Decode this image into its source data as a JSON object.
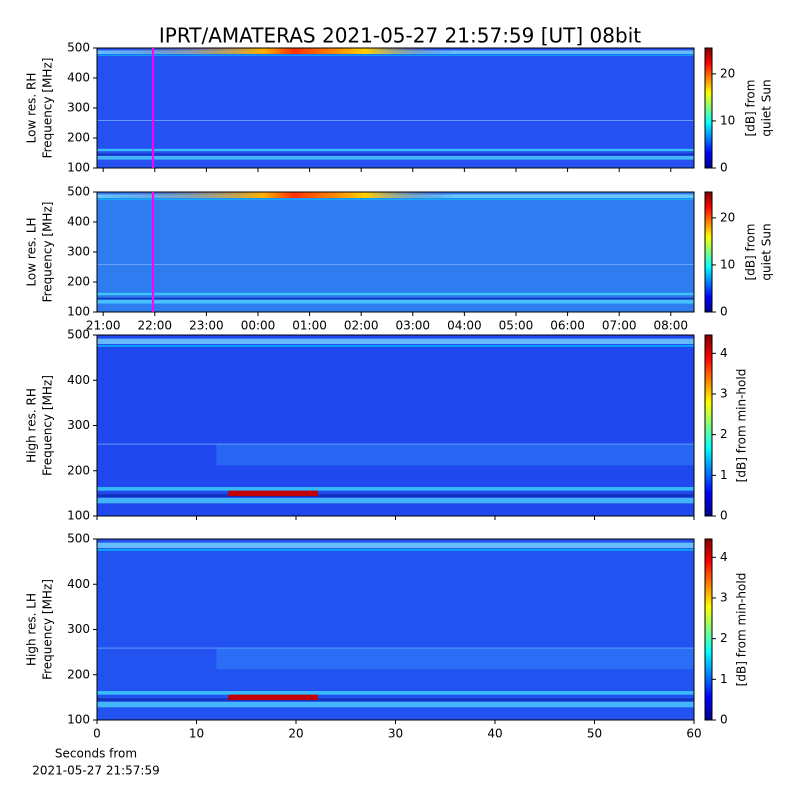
{
  "chart_data": [
    {
      "type": "heatmap",
      "title": "IPRT/AMATERAS 2021-05-27 21:57:59 [UT]   08bit",
      "ylabel": [
        "Low res. RH",
        "Frequency [MHz]"
      ],
      "ylim": [
        100,
        500
      ],
      "yticks": [
        100,
        200,
        300,
        400,
        500
      ],
      "xlim": [
        20.88,
        32.45
      ],
      "xticks": [
        21,
        22,
        23,
        24,
        25,
        26,
        27,
        28,
        29,
        30,
        31,
        32
      ],
      "xticklabels": false,
      "marker": {
        "x": 21.966,
        "color": "#ff00ff"
      },
      "colorbar": {
        "label": [
          "[dB] from",
          "quiet Sun"
        ],
        "lim": [
          0,
          25.5
        ],
        "ticks": [
          0,
          10,
          20
        ]
      }
    },
    {
      "type": "heatmap",
      "ylabel": [
        "Low res. LH",
        "Frequency [MHz]"
      ],
      "ylim": [
        100,
        500
      ],
      "yticks": [
        100,
        200,
        300,
        400,
        500
      ],
      "xlim": [
        20.88,
        32.45
      ],
      "xticks": [
        {
          "value": 21,
          "label": "21:00"
        },
        {
          "value": 22,
          "label": "22:00"
        },
        {
          "value": 23,
          "label": "23:00"
        },
        {
          "value": 24,
          "label": "00:00"
        },
        {
          "value": 25,
          "label": "01:00"
        },
        {
          "value": 26,
          "label": "02:00"
        },
        {
          "value": 27,
          "label": "03:00"
        },
        {
          "value": 28,
          "label": "04:00"
        },
        {
          "value": 29,
          "label": "05:00"
        },
        {
          "value": 30,
          "label": "06:00"
        },
        {
          "value": 31,
          "label": "07:00"
        },
        {
          "value": 32,
          "label": "08:00"
        }
      ],
      "xticklabels": true,
      "marker": {
        "x": 21.966,
        "color": "#ff00ff"
      },
      "colorbar": {
        "label": [
          "[dB] from",
          "quiet Sun"
        ],
        "lim": [
          0,
          25.5
        ],
        "ticks": [
          0,
          10,
          20
        ]
      }
    },
    {
      "type": "heatmap",
      "ylabel": [
        "High res. RH",
        "Frequency [MHz]"
      ],
      "ylim": [
        100,
        500
      ],
      "yticks": [
        100,
        200,
        300,
        400,
        500
      ],
      "xlim": [
        0,
        60
      ],
      "xticks": [
        0,
        10,
        20,
        30,
        40,
        50,
        60
      ],
      "xticklabels": false,
      "colorbar": {
        "label": [
          "[dB] from min-hold"
        ],
        "lim": [
          0,
          4.45
        ],
        "ticks": [
          0,
          1,
          2,
          3,
          4
        ]
      }
    },
    {
      "type": "heatmap",
      "ylabel": [
        "High res. LH",
        "Frequency [MHz]"
      ],
      "ylim": [
        100,
        500
      ],
      "yticks": [
        100,
        200,
        300,
        400,
        500
      ],
      "xlim": [
        0,
        60
      ],
      "xticks": [
        0,
        10,
        20,
        30,
        40,
        50,
        60
      ],
      "xticklabels": true,
      "xlabel": [
        "Seconds from",
        "2021-05-27 21:57:59"
      ],
      "colorbar": {
        "label": [
          "[dB] from min-hold"
        ],
        "lim": [
          0,
          4.45
        ],
        "ticks": [
          0,
          1,
          2,
          3,
          4
        ]
      }
    }
  ]
}
